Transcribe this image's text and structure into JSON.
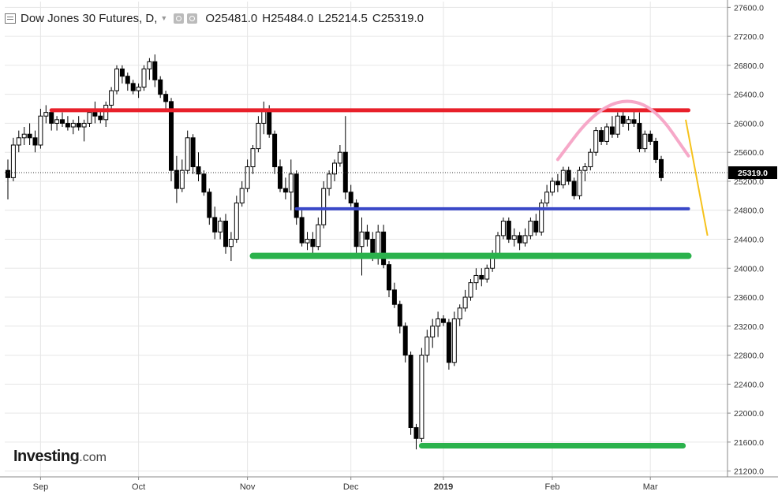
{
  "header": {
    "title": "Dow Jones 30 Futures, D,",
    "open_label": "O",
    "open": "25481.0",
    "high_label": "H",
    "high": "25484.0",
    "low_label": "L",
    "low": "25214.5",
    "close_label": "C",
    "close": "25319.0",
    "icons": [
      "menu-icon",
      "caret-down-icon",
      "eye-icon",
      "settings-icon"
    ]
  },
  "logo": {
    "brand": "Investing",
    "suffix": ".com"
  },
  "colors": {
    "up_candle": "#ffffff",
    "down_candle": "#000000",
    "wick": "#000000",
    "grid": "#e6e6e6",
    "axis_text": "#333333",
    "resistance": "#e8202a",
    "mid_support": "#3a48c8",
    "support": "#2bb24c",
    "arc": "#f6a8c8",
    "trend": "#f6c21c",
    "price_tag_bg": "#000000",
    "price_tag_text": "#ffffff"
  },
  "chart_data": {
    "type": "candlestick",
    "y_ticks": [
      "27600.0",
      "27200.0",
      "26800.0",
      "26400.0",
      "26000.0",
      "25600.0",
      "25200.0",
      "24800.0",
      "24400.0",
      "24000.0",
      "23600.0",
      "23200.0",
      "22800.0",
      "22400.0",
      "22000.0",
      "21600.0",
      "21200.0"
    ],
    "ylim": [
      21120,
      27680
    ],
    "x_labels": [
      "Sep",
      "Oct",
      "Nov",
      "Dec",
      "2019",
      "Feb",
      "Mar"
    ],
    "x_label_sessions": [
      6,
      24,
      44,
      63,
      80,
      100,
      118
    ],
    "last_price": "25319.0",
    "last_price_value": 25319,
    "ohlc": [
      [
        25350,
        25500,
        24950,
        25250
      ],
      [
        25250,
        25800,
        25200,
        25700
      ],
      [
        25700,
        25900,
        25600,
        25800
      ],
      [
        25800,
        25950,
        25700,
        25850
      ],
      [
        25850,
        26000,
        25700,
        25800
      ],
      [
        25800,
        25900,
        25600,
        25700
      ],
      [
        25700,
        26200,
        25650,
        26100
      ],
      [
        26100,
        26250,
        26000,
        26150
      ],
      [
        26150,
        26200,
        25900,
        26000
      ],
      [
        26000,
        26100,
        25900,
        26050
      ],
      [
        26050,
        26150,
        25950,
        26000
      ],
      [
        26000,
        26100,
        25900,
        25950
      ],
      [
        25950,
        26050,
        25850,
        26000
      ],
      [
        26000,
        26100,
        25900,
        25950
      ],
      [
        25950,
        26050,
        25750,
        26000
      ],
      [
        26000,
        26200,
        25950,
        26150
      ],
      [
        26150,
        26300,
        26000,
        26100
      ],
      [
        26100,
        26200,
        26000,
        26050
      ],
      [
        26050,
        26300,
        25950,
        26250
      ],
      [
        26250,
        26500,
        26200,
        26450
      ],
      [
        26450,
        26800,
        26400,
        26750
      ],
      [
        26750,
        26800,
        26550,
        26650
      ],
      [
        26650,
        26700,
        26450,
        26550
      ],
      [
        26550,
        26600,
        26400,
        26450
      ],
      [
        26450,
        26550,
        26350,
        26500
      ],
      [
        26500,
        26800,
        26450,
        26750
      ],
      [
        26750,
        26900,
        26600,
        26850
      ],
      [
        26850,
        26950,
        26500,
        26600
      ],
      [
        26600,
        26650,
        26350,
        26400
      ],
      [
        26400,
        26450,
        26200,
        26300
      ],
      [
        26300,
        26350,
        25200,
        25350
      ],
      [
        25350,
        25550,
        24900,
        25100
      ],
      [
        25100,
        25500,
        25050,
        25350
      ],
      [
        25350,
        25900,
        25300,
        25800
      ],
      [
        25800,
        25850,
        25300,
        25400
      ],
      [
        25400,
        25600,
        25200,
        25300
      ],
      [
        25300,
        25350,
        25000,
        25050
      ],
      [
        25050,
        25100,
        24600,
        24700
      ],
      [
        24700,
        24850,
        24400,
        24500
      ],
      [
        24500,
        24700,
        24400,
        24650
      ],
      [
        24650,
        24750,
        24200,
        24300
      ],
      [
        24300,
        24500,
        24100,
        24400
      ],
      [
        24400,
        25000,
        24350,
        24900
      ],
      [
        24900,
        25200,
        24850,
        25100
      ],
      [
        25100,
        25500,
        25050,
        25400
      ],
      [
        25400,
        25700,
        25300,
        25650
      ],
      [
        25650,
        26100,
        25600,
        26000
      ],
      [
        26000,
        26300,
        25850,
        26200
      ],
      [
        26200,
        26250,
        25800,
        25850
      ],
      [
        25850,
        25900,
        25300,
        25400
      ],
      [
        25400,
        25500,
        25050,
        25100
      ],
      [
        25100,
        25250,
        24950,
        25050
      ],
      [
        25050,
        25500,
        24800,
        25300
      ],
      [
        25300,
        25350,
        24600,
        24700
      ],
      [
        24700,
        24800,
        24300,
        24350
      ],
      [
        24350,
        24500,
        24250,
        24400
      ],
      [
        24400,
        24500,
        24200,
        24300
      ],
      [
        24300,
        24700,
        24250,
        24600
      ],
      [
        24600,
        25200,
        24550,
        25100
      ],
      [
        25100,
        25350,
        25000,
        25300
      ],
      [
        25300,
        25500,
        25200,
        25450
      ],
      [
        25450,
        25700,
        25400,
        25600
      ],
      [
        25600,
        26100,
        24950,
        25050
      ],
      [
        25050,
        25150,
        24850,
        24900
      ],
      [
        24900,
        24950,
        24200,
        24300
      ],
      [
        24300,
        24700,
        23900,
        24500
      ],
      [
        24500,
        24600,
        24300,
        24400
      ],
      [
        24400,
        24500,
        24100,
        24200
      ],
      [
        24200,
        24600,
        24050,
        24500
      ],
      [
        24500,
        24600,
        24000,
        24050
      ],
      [
        24050,
        24100,
        23600,
        23700
      ],
      [
        23700,
        23800,
        23450,
        23500
      ],
      [
        23500,
        23550,
        23100,
        23200
      ],
      [
        23200,
        23250,
        22700,
        22800
      ],
      [
        22800,
        22850,
        21700,
        21800
      ],
      [
        21800,
        21850,
        21500,
        21650
      ],
      [
        21650,
        22900,
        21600,
        22800
      ],
      [
        22800,
        23150,
        22700,
        23050
      ],
      [
        23050,
        23300,
        22900,
        23200
      ],
      [
        23200,
        23400,
        23050,
        23300
      ],
      [
        23300,
        23350,
        23200,
        23250
      ],
      [
        23250,
        23300,
        22600,
        22700
      ],
      [
        22700,
        23400,
        22650,
        23300
      ],
      [
        23300,
        23500,
        23200,
        23450
      ],
      [
        23450,
        23700,
        23400,
        23600
      ],
      [
        23600,
        23850,
        23550,
        23800
      ],
      [
        23800,
        24000,
        23700,
        23900
      ],
      [
        23900,
        24000,
        23750,
        23850
      ],
      [
        23850,
        24050,
        23800,
        24000
      ],
      [
        24000,
        24250,
        23950,
        24200
      ],
      [
        24200,
        24500,
        24150,
        24450
      ],
      [
        24450,
        24700,
        24400,
        24650
      ],
      [
        24650,
        24700,
        24350,
        24400
      ],
      [
        24400,
        24550,
        24300,
        24450
      ],
      [
        24450,
        24500,
        24250,
        24350
      ],
      [
        24350,
        24550,
        24300,
        24450
      ],
      [
        24450,
        24700,
        24400,
        24650
      ],
      [
        24650,
        24750,
        24450,
        24500
      ],
      [
        24500,
        24950,
        24450,
        24900
      ],
      [
        24900,
        25150,
        24850,
        25050
      ],
      [
        25050,
        25250,
        25000,
        25200
      ],
      [
        25200,
        25300,
        25050,
        25150
      ],
      [
        25150,
        25400,
        25100,
        25350
      ],
      [
        25350,
        25400,
        25150,
        25200
      ],
      [
        25200,
        25250,
        24950,
        25000
      ],
      [
        25000,
        25400,
        24950,
        25350
      ],
      [
        25350,
        25450,
        25200,
        25400
      ],
      [
        25400,
        25650,
        25350,
        25600
      ],
      [
        25600,
        25950,
        25550,
        25900
      ],
      [
        25900,
        25950,
        25700,
        25750
      ],
      [
        25750,
        26000,
        25700,
        25950
      ],
      [
        25950,
        26100,
        25800,
        25850
      ],
      [
        25850,
        26150,
        25800,
        26100
      ],
      [
        26100,
        26200,
        25950,
        26000
      ],
      [
        26000,
        26100,
        25900,
        26050
      ],
      [
        26050,
        26200,
        25950,
        26000
      ],
      [
        26000,
        26150,
        25600,
        25650
      ],
      [
        25650,
        25900,
        25600,
        25850
      ],
      [
        25850,
        25900,
        25700,
        25750
      ],
      [
        25750,
        25800,
        25450,
        25500
      ],
      [
        25500,
        25550,
        25200,
        25250
      ]
    ],
    "levels": [
      {
        "name": "resistance",
        "value": 26180,
        "x_from": 8,
        "x_to": 125
      },
      {
        "name": "mid_support",
        "value": 24820,
        "x_from": 53,
        "x_to": 125
      },
      {
        "name": "support",
        "value": 24170,
        "x_from": 45,
        "x_to": 125
      },
      {
        "name": "low_support",
        "value": 21550,
        "x_from": 76,
        "x_to": 124
      }
    ],
    "annotations": {
      "arc": [
        [
          101,
          25500
        ],
        [
          107,
          26100
        ],
        [
          113,
          26350
        ],
        [
          119,
          26200
        ],
        [
          125,
          25550
        ]
      ],
      "trend_line": [
        [
          124.5,
          26050
        ],
        [
          128.5,
          24450
        ]
      ]
    }
  }
}
